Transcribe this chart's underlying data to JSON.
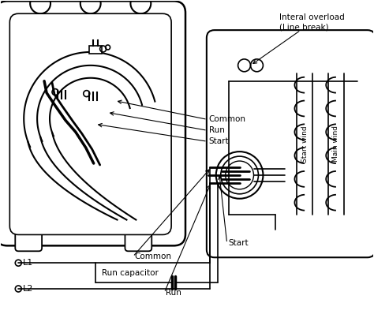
{
  "bg_color": "#ffffff",
  "line_color": "#000000",
  "text_color": "#000000",
  "labels": {
    "common_label": "Common",
    "run_label": "Run",
    "start_label": "Start",
    "overload_label": "Interal overload\n(Line break)",
    "run_cap_label": "Run capacitor",
    "l1_label": "L1",
    "l2_label": "L2",
    "start_wind": "Start wind",
    "main_wind": "Main wind",
    "common2": "Common",
    "run2": "Run",
    "start2": "Start"
  },
  "figsize": [
    4.74,
    4.22
  ],
  "dpi": 100
}
